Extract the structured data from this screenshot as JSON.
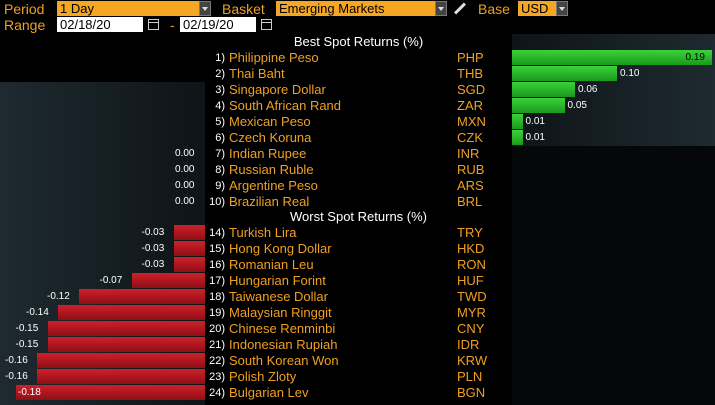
{
  "toolbar": {
    "period_label": "Period",
    "period_value": "1 Day",
    "basket_label": "Basket",
    "basket_value": "Emerging Markets",
    "base_label": "Base",
    "base_value": "USD",
    "range_label": "Range",
    "range_start": "02/18/20",
    "range_sep": "-",
    "range_end": "02/19/20"
  },
  "best": {
    "title": "Best Spot Returns (%)",
    "rows": [
      {
        "rank": "1)",
        "name": "Philippine Peso",
        "code": "PHP",
        "value": 0.19,
        "label": "0.19"
      },
      {
        "rank": "2)",
        "name": "Thai Baht",
        "code": "THB",
        "value": 0.1,
        "label": "0.10"
      },
      {
        "rank": "3)",
        "name": "Singapore Dollar",
        "code": "SGD",
        "value": 0.06,
        "label": "0.06"
      },
      {
        "rank": "4)",
        "name": "South African Rand",
        "code": "ZAR",
        "value": 0.05,
        "label": "0.05"
      },
      {
        "rank": "5)",
        "name": "Mexican Peso",
        "code": "MXN",
        "value": 0.01,
        "label": "0.01"
      },
      {
        "rank": "6)",
        "name": "Czech Koruna",
        "code": "CZK",
        "value": 0.01,
        "label": "0.01"
      },
      {
        "rank": "7)",
        "name": "Indian Rupee",
        "code": "INR",
        "value": 0.0,
        "label": "0.00"
      },
      {
        "rank": "8)",
        "name": "Russian Ruble",
        "code": "RUB",
        "value": 0.0,
        "label": "0.00"
      },
      {
        "rank": "9)",
        "name": "Argentine Peso",
        "code": "ARS",
        "value": 0.0,
        "label": "0.00"
      },
      {
        "rank": "10)",
        "name": "Brazilian Real",
        "code": "BRL",
        "value": 0.0,
        "label": "0.00"
      }
    ]
  },
  "worst": {
    "title": "Worst Spot Returns (%)",
    "rows": [
      {
        "rank": "14)",
        "name": "Turkish Lira",
        "code": "TRY",
        "value": -0.03,
        "label": "-0.03"
      },
      {
        "rank": "15)",
        "name": "Hong Kong Dollar",
        "code": "HKD",
        "value": -0.03,
        "label": "-0.03"
      },
      {
        "rank": "16)",
        "name": "Romanian Leu",
        "code": "RON",
        "value": -0.03,
        "label": "-0.03"
      },
      {
        "rank": "17)",
        "name": "Hungarian Forint",
        "code": "HUF",
        "value": -0.07,
        "label": "-0.07"
      },
      {
        "rank": "18)",
        "name": "Taiwanese Dollar",
        "code": "TWD",
        "value": -0.12,
        "label": "-0.12"
      },
      {
        "rank": "19)",
        "name": "Malaysian Ringgit",
        "code": "MYR",
        "value": -0.14,
        "label": "-0.14"
      },
      {
        "rank": "20)",
        "name": "Chinese Renminbi",
        "code": "CNY",
        "value": -0.15,
        "label": "-0.15"
      },
      {
        "rank": "21)",
        "name": "Indonesian Rupiah",
        "code": "IDR",
        "value": -0.15,
        "label": "-0.15"
      },
      {
        "rank": "22)",
        "name": "South Korean Won",
        "code": "KRW",
        "value": -0.16,
        "label": "-0.16"
      },
      {
        "rank": "23)",
        "name": "Polish Zloty",
        "code": "PLN",
        "value": -0.16,
        "label": "-0.16"
      },
      {
        "rank": "24)",
        "name": "Bulgarian Lev",
        "code": "BGN",
        "value": -0.18,
        "label": "-0.18"
      }
    ]
  },
  "colors": {
    "positive": "#22b022",
    "negative": "#b3141c",
    "accent": "#f0a020",
    "field": "#f5a623"
  }
}
